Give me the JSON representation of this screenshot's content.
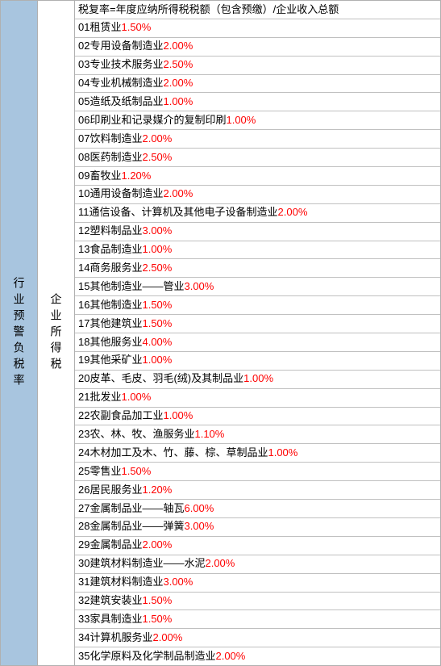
{
  "leftLabel": "行业预警负税率",
  "midLabel": "企业所得税",
  "headerText": "税复率=年度应纳所得税税额（包含预缴）/企业收入总额",
  "rows": [
    {
      "num": "01",
      "name": "租赁业",
      "pct": "1.50%"
    },
    {
      "num": "02",
      "name": "专用设备制造业",
      "pct": "2.00%"
    },
    {
      "num": "03",
      "name": "专业技术服务业",
      "pct": "2.50%"
    },
    {
      "num": "04",
      "name": "专业机械制造业",
      "pct": "2.00%"
    },
    {
      "num": "05",
      "name": "造纸及纸制品业",
      "pct": "1.00%"
    },
    {
      "num": "06",
      "name": "印刷业和记录媒介的复制印刷",
      "pct": "1.00%"
    },
    {
      "num": "07",
      "name": "饮料制造业",
      "pct": "2.00%"
    },
    {
      "num": "08",
      "name": "医药制造业",
      "pct": "2.50%"
    },
    {
      "num": "09",
      "name": "畜牧业",
      "pct": "1.20%"
    },
    {
      "num": "10",
      "name": "通用设备制造业",
      "pct": "2.00%"
    },
    {
      "num": "11",
      "name": "通信设备、计算机及其他电子设备制造业",
      "pct": "2.00%",
      "nospace": true
    },
    {
      "num": "12",
      "name": "塑料制品业",
      "pct": "3.00%"
    },
    {
      "num": "13",
      "name": "食品制造业",
      "pct": "1.00%"
    },
    {
      "num": "14",
      "name": "商务服务业",
      "pct": "2.50%"
    },
    {
      "num": "15",
      "name": "其他制造业——管业",
      "pct": "3.00%"
    },
    {
      "num": "16",
      "name": "其他制造业",
      "pct": "1.50%"
    },
    {
      "num": "17",
      "name": "其他建筑业",
      "pct": "1.50%"
    },
    {
      "num": "18",
      "name": "其他服务业",
      "pct": "4.00%"
    },
    {
      "num": "19",
      "name": "其他采矿业",
      "pct": "1.00%"
    },
    {
      "num": "20",
      "name": "皮革、毛皮、羽毛(绒)及其制品业",
      "pct": "1.00%",
      "nospace": true
    },
    {
      "num": "21",
      "name": "批发业",
      "pct": "1.00%"
    },
    {
      "num": "22",
      "name": "农副食品加工业",
      "pct": "1.00%"
    },
    {
      "num": "23",
      "name": "农、林、牧、渔服务业",
      "pct": "1.10%"
    },
    {
      "num": "24",
      "name": "木材加工及木、竹、藤、棕、草制品业",
      "pct": "1.00%"
    },
    {
      "num": "25",
      "name": "零售业",
      "pct": "1.50%"
    },
    {
      "num": "26",
      "name": "居民服务业",
      "pct": "1.20%"
    },
    {
      "num": "27",
      "name": "金属制品业——轴瓦",
      "pct": "6.00%"
    },
    {
      "num": "28",
      "name": "金属制品业——弹簧",
      "pct": "3.00%"
    },
    {
      "num": "29",
      "name": "金属制品业",
      "pct": "2.00%",
      "nonumspace": true
    },
    {
      "num": "30",
      "name": "建筑材料制造业——水泥",
      "pct": "2.00%"
    },
    {
      "num": "31",
      "name": "建筑材料制造业",
      "pct": "3.00%"
    },
    {
      "num": "32",
      "name": "建筑安装业",
      "pct": "1.50%"
    },
    {
      "num": "33",
      "name": "家具制造业",
      "pct": "1.50%"
    },
    {
      "num": "34",
      "name": "计算机服务业",
      "pct": "2.00%"
    },
    {
      "num": "35",
      "name": "化学原料及化学制品制造业",
      "pct": "2.00%"
    }
  ],
  "colors": {
    "leftBg": "#a8c5df",
    "pctColor": "#ff0000",
    "textColor": "#000000",
    "borderColor": "#c0c0c0"
  }
}
